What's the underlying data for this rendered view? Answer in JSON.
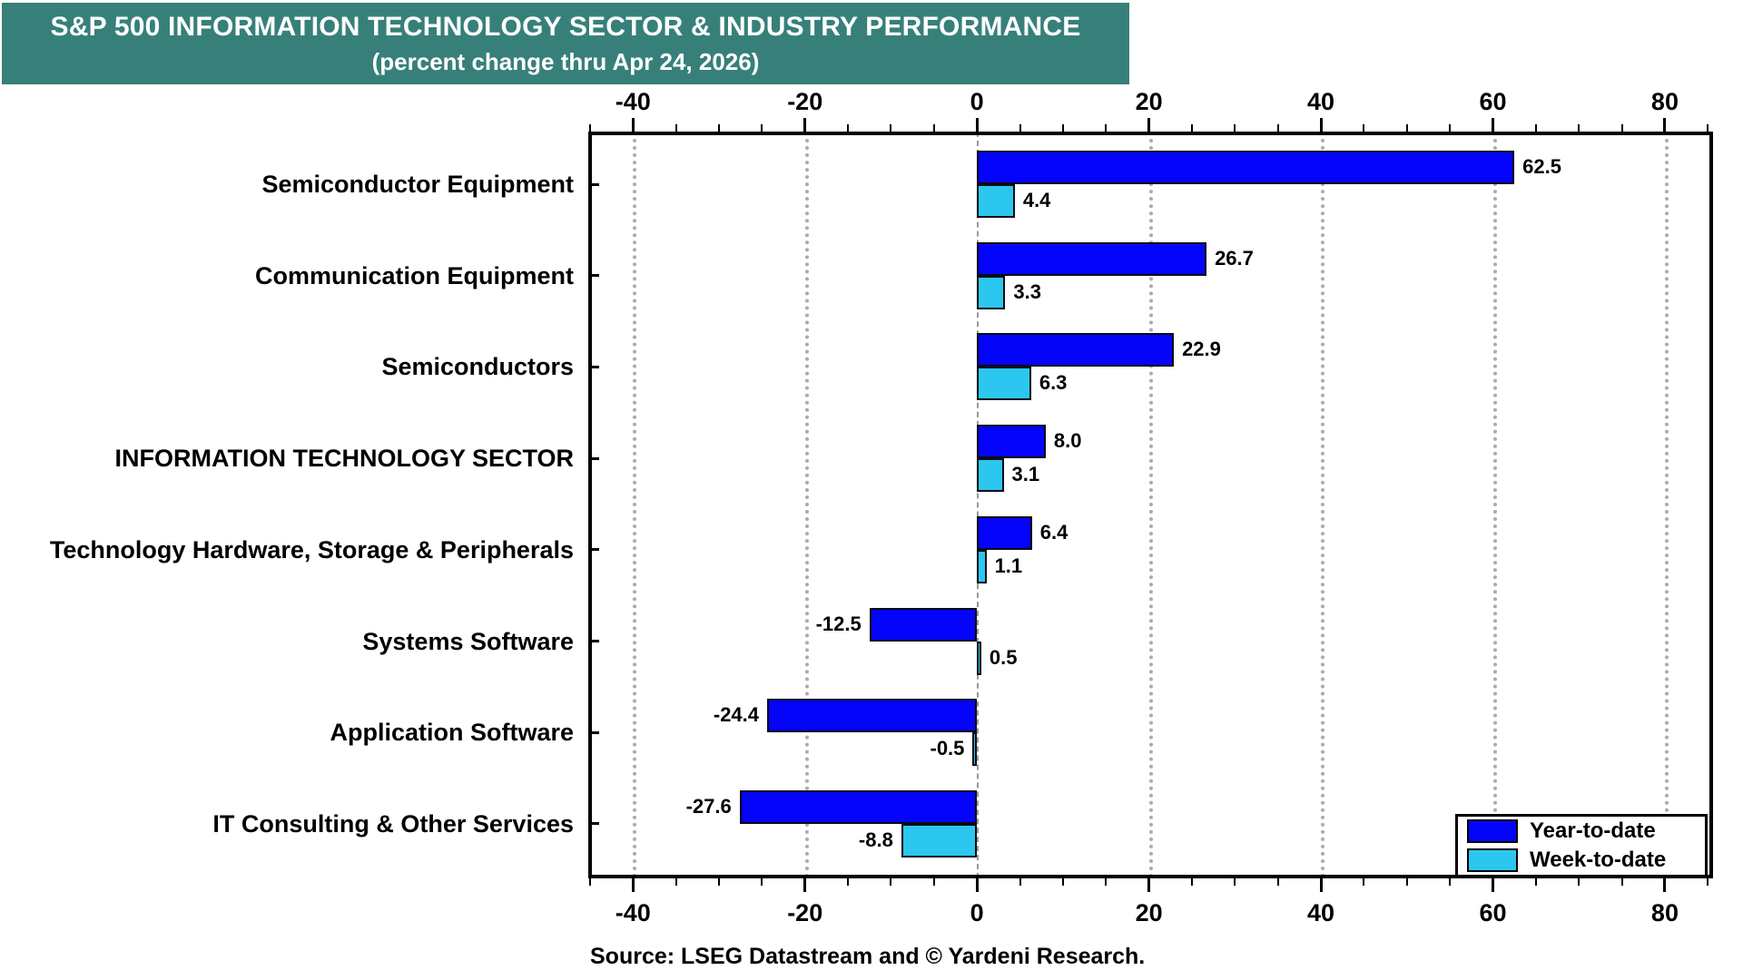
{
  "banner": {
    "title": "S&P 500 INFORMATION TECHNOLOGY SECTOR & INDUSTRY PERFORMANCE",
    "subtitle": "(percent change thru Apr 24, 2026)",
    "bg_color": "#37807a"
  },
  "source": "Source: LSEG Datastream and © Yardeni Research.",
  "legend": {
    "items": [
      {
        "label": "Year-to-date",
        "color": "#0404fa"
      },
      {
        "label": "Week-to-date",
        "color": "#2cc7ef"
      }
    ],
    "position": "bottom-right"
  },
  "chart_data": {
    "type": "bar",
    "orientation": "horizontal",
    "title": "S&P 500 INFORMATION TECHNOLOGY SECTOR & INDUSTRY PERFORMANCE",
    "subtitle": "(percent change thru Apr 24, 2026)",
    "xlabel": "percent change",
    "categories": [
      "Semiconductor Equipment",
      "Communication Equipment",
      "Semiconductors",
      "INFORMATION TECHNOLOGY SECTOR",
      "Technology Hardware, Storage & Peripherals",
      "Systems Software",
      "Application Software",
      "IT Consulting & Other Services"
    ],
    "series": [
      {
        "name": "Year-to-date",
        "color": "#0404fa",
        "values": [
          62.5,
          26.7,
          22.9,
          8.0,
          6.4,
          -12.5,
          -24.4,
          -27.6
        ],
        "labels": [
          "62.5",
          "26.7",
          "22.9",
          "8.0",
          "6.4",
          "-12.5",
          "-24.4",
          "-27.6"
        ]
      },
      {
        "name": "Week-to-date",
        "color": "#2cc7ef",
        "values": [
          4.4,
          3.3,
          6.3,
          3.1,
          1.1,
          0.5,
          -0.5,
          -8.8
        ],
        "labels": [
          "4.4",
          "3.3",
          "6.3",
          "3.1",
          "1.1",
          "0.5",
          "-0.5",
          "-8.8"
        ]
      }
    ],
    "xlim": [
      -45.2,
      85.6
    ],
    "x_major_ticks": [
      -40,
      -20,
      0,
      20,
      40,
      60,
      80
    ],
    "x_tick_labels": [
      "-40",
      "-20",
      "0",
      "20",
      "40",
      "60",
      "80"
    ],
    "x_minor_step": 5,
    "grid": "vertical dotted gray at major ticks, dashed line at zero",
    "legend_position": "bottom-right"
  }
}
